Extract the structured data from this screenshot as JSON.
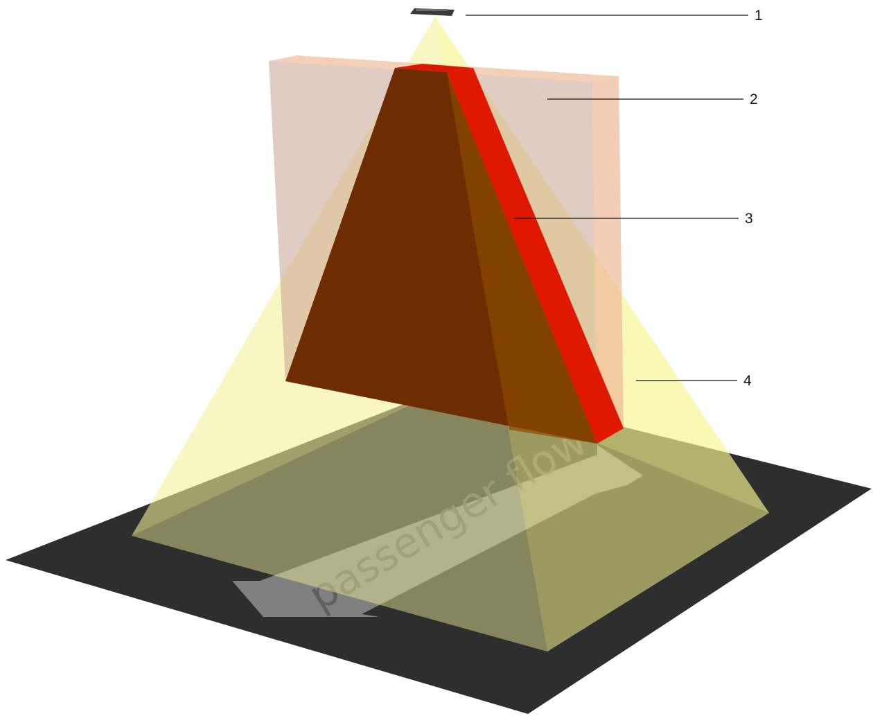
{
  "diagram": {
    "flow_text": "passenger flow",
    "callouts": [
      {
        "number": "1"
      },
      {
        "number": "2"
      },
      {
        "number": "3"
      },
      {
        "number": "4"
      }
    ],
    "colors": {
      "floor": "#2e2e2e",
      "light_cone": "#f6f39a",
      "sensor_plane": "#e8a57a",
      "inner_triangle": "#6e2d00",
      "edge_strip": "#e01800",
      "flow_arrow": "#8a8a8a",
      "sensor_device": "#3a3a3a",
      "leader_line": "#111111"
    }
  }
}
